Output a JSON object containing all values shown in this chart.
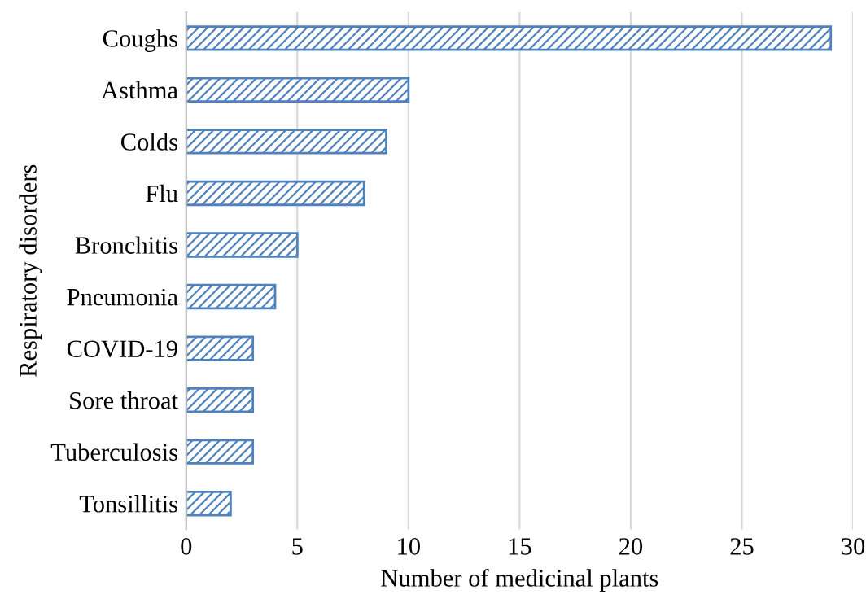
{
  "chart_data": {
    "type": "bar",
    "orientation": "horizontal",
    "xlabel": "Number of medicinal plants",
    "ylabel": "Respiratory disorders",
    "categories": [
      "Coughs",
      "Asthma",
      "Colds",
      "Flu",
      "Bronchitis",
      "Pneumonia",
      "COVID-19",
      "Sore throat",
      "Tuberculosis",
      "Tonsillitis"
    ],
    "values": [
      29,
      10,
      9,
      8,
      5,
      4,
      3,
      3,
      3,
      2
    ],
    "color": "#4f81bd",
    "xlim": [
      0,
      30
    ],
    "xticks": [
      0,
      5,
      10,
      15,
      20,
      25,
      30
    ],
    "grid": "x",
    "legend": false
  }
}
